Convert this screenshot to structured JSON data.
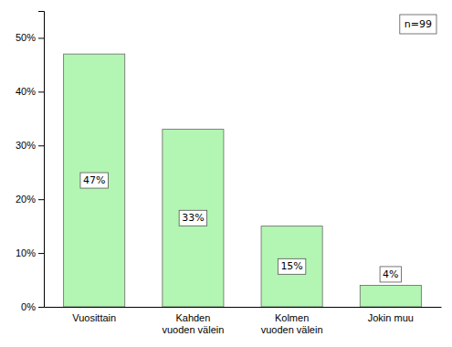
{
  "chart_data": {
    "type": "bar",
    "categories": [
      "Vuosittain",
      "Kahden\nvuoden välein",
      "Kolmen\nvuoden välein",
      "Jokin muu"
    ],
    "values": [
      47,
      33,
      15,
      4
    ],
    "value_labels": [
      "47%",
      "33%",
      "15%",
      "4%"
    ],
    "data_labels": true,
    "color": "#b3f5b3",
    "ylim": [
      0,
      55
    ],
    "yticks": [
      {
        "value": 0,
        "label": "0%"
      },
      {
        "value": 10,
        "label": "10%"
      },
      {
        "value": 20,
        "label": "20%"
      },
      {
        "value": 30,
        "label": "30%"
      },
      {
        "value": 40,
        "label": "40%"
      },
      {
        "value": 50,
        "label": "50%"
      }
    ],
    "annotations": [
      "n=99"
    ],
    "grid": false
  }
}
